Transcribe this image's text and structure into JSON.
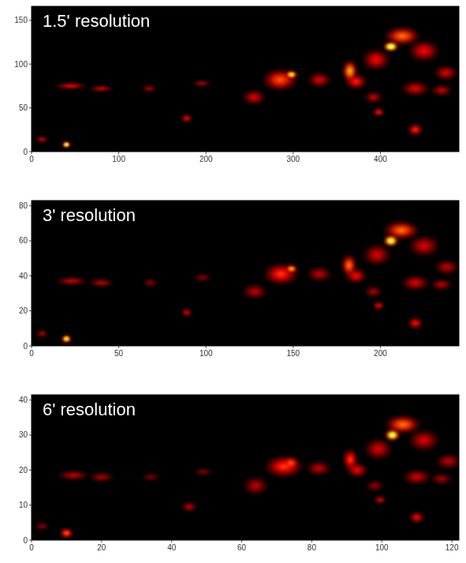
{
  "chart_data": [
    {
      "type": "heatmap",
      "title": "1.5' resolution",
      "color": "hot",
      "xlim": [
        0,
        490
      ],
      "ylim": [
        0,
        166
      ],
      "xticks": [
        0,
        100,
        200,
        300,
        400
      ],
      "yticks": [
        0,
        50,
        100,
        150
      ],
      "sources": {
        "x": [
          40,
          12,
          45,
          80,
          135,
          178,
          195,
          255,
          285,
          298,
          330,
          365,
          372,
          412,
          425,
          395,
          450,
          475,
          440,
          392,
          398,
          440,
          470
        ],
        "y": [
          8,
          14,
          75,
          72,
          72,
          38,
          78,
          62,
          82,
          88,
          82,
          92,
          80,
          120,
          132,
          105,
          115,
          90,
          72,
          62,
          45,
          25,
          70
        ],
        "rx": [
          6,
          8,
          20,
          15,
          10,
          8,
          12,
          15,
          22,
          8,
          15,
          10,
          14,
          10,
          22,
          18,
          20,
          15,
          18,
          12,
          8,
          10,
          14
        ],
        "ry": [
          5,
          5,
          5,
          5,
          5,
          6,
          5,
          10,
          14,
          6,
          10,
          14,
          10,
          7,
          12,
          14,
          14,
          10,
          10,
          8,
          6,
          8,
          8
        ],
        "values": [
          0.9,
          0.3,
          0.35,
          0.3,
          0.25,
          0.35,
          0.25,
          0.35,
          0.55,
          0.85,
          0.35,
          0.7,
          0.45,
          1.0,
          0.6,
          0.4,
          0.4,
          0.35,
          0.35,
          0.3,
          0.4,
          0.45,
          0.3
        ]
      }
    },
    {
      "type": "heatmap",
      "title": "3' resolution",
      "color": "hot",
      "xlim": [
        0,
        245
      ],
      "ylim": [
        0,
        83
      ],
      "xticks": [
        0,
        50,
        100,
        150,
        200
      ],
      "yticks": [
        0,
        20,
        40,
        60,
        80
      ],
      "sources": {
        "x": [
          20,
          6,
          23,
          40,
          68,
          89,
          98,
          128,
          143,
          149,
          165,
          182,
          186,
          206,
          212,
          198,
          225,
          238,
          220,
          196,
          199,
          220,
          235
        ],
        "y": [
          4,
          7,
          37,
          36,
          36,
          19,
          39,
          31,
          41,
          44,
          41,
          46,
          40,
          60,
          66,
          52,
          57,
          45,
          36,
          31,
          23,
          13,
          35
        ],
        "rx": [
          3.5,
          4,
          10,
          8,
          5,
          4,
          6,
          8,
          11,
          4,
          8,
          5,
          7,
          5,
          11,
          9,
          10,
          8,
          9,
          6,
          4,
          5,
          7
        ],
        "ry": [
          3,
          3,
          3,
          3,
          3,
          3,
          3,
          5,
          7,
          3,
          5,
          7,
          5,
          4,
          6,
          7,
          7,
          5,
          5,
          4,
          3,
          4,
          4
        ],
        "values": [
          0.85,
          0.25,
          0.3,
          0.28,
          0.2,
          0.3,
          0.2,
          0.3,
          0.5,
          0.7,
          0.3,
          0.6,
          0.4,
          0.95,
          0.6,
          0.35,
          0.35,
          0.3,
          0.35,
          0.25,
          0.35,
          0.4,
          0.28
        ]
      }
    },
    {
      "type": "heatmap",
      "title": "6' resolution",
      "color": "hot",
      "xlim": [
        0,
        122
      ],
      "ylim": [
        0,
        41.5
      ],
      "xticks": [
        0,
        20,
        40,
        60,
        80,
        100,
        120
      ],
      "yticks": [
        0,
        10,
        20,
        30,
        40
      ],
      "sources": {
        "x": [
          10,
          3,
          12,
          20,
          34,
          45,
          49,
          64,
          72,
          74,
          82,
          91,
          93,
          103,
          106,
          99,
          112,
          119,
          110,
          98,
          99.5,
          110,
          117
        ],
        "y": [
          2,
          4,
          18.5,
          18,
          18,
          9.5,
          19.5,
          15.5,
          21,
          22,
          20.5,
          23,
          20,
          30,
          33,
          26,
          28.5,
          22.5,
          18,
          15.5,
          11.5,
          6.5,
          17.5
        ],
        "rx": [
          2.2,
          2.5,
          5,
          4,
          3,
          2.5,
          3,
          4,
          6,
          2.5,
          4,
          2.5,
          3.5,
          2.5,
          5.5,
          4.5,
          5,
          4,
          4.5,
          3,
          2,
          2.5,
          3.5
        ],
        "ry": [
          1.8,
          1.5,
          1.8,
          1.8,
          1.5,
          1.8,
          1.5,
          3,
          3.5,
          2,
          2.5,
          3.5,
          2.5,
          2,
          3,
          3.5,
          3.5,
          2.5,
          2.5,
          2,
          1.5,
          2,
          2
        ],
        "values": [
          0.55,
          0.2,
          0.28,
          0.25,
          0.18,
          0.28,
          0.18,
          0.3,
          0.5,
          0.55,
          0.3,
          0.5,
          0.38,
          0.95,
          0.6,
          0.35,
          0.35,
          0.3,
          0.33,
          0.22,
          0.32,
          0.38,
          0.25
        ]
      }
    }
  ]
}
